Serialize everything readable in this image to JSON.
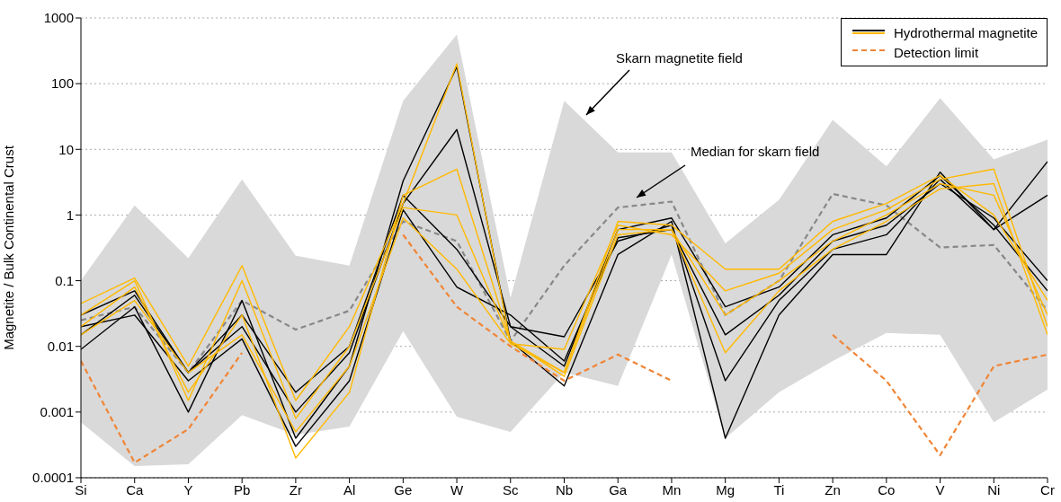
{
  "chart_data": {
    "type": "line",
    "ylabel": "Magnetite / Bulk Continental Crust",
    "categories": [
      "Si",
      "Ca",
      "Y",
      "Pb",
      "Zr",
      "Al",
      "Ge",
      "W",
      "Sc",
      "Nb",
      "Ga",
      "Mn",
      "Mg",
      "Ti",
      "Zn",
      "Co",
      "V",
      "Ni",
      "Cr"
    ],
    "log": "y",
    "ylim": [
      0.0001,
      1000
    ],
    "yticks": [
      0.0001,
      0.001,
      0.01,
      0.1,
      1,
      10,
      100,
      1000
    ],
    "grid": "y",
    "legend": "top right",
    "marker": "none",
    "annotations": [
      "Skarn magnetite field",
      "Median for skarn field"
    ],
    "series": [
      {
        "color": "#888888",
        "line_style": "dashed",
        "values": [
          0.025,
          0.04,
          0.004,
          0.05,
          0.018,
          0.035,
          0.8,
          0.4,
          0.012,
          0.17,
          1.3,
          1.6,
          0.03,
          0.1,
          2.1,
          1.4,
          0.32,
          0.35,
          0.035
        ],
        "lower": [
          0.0007,
          0.00015,
          0.00016,
          0.0009,
          0.00045,
          0.0006,
          0.017,
          0.00085,
          0.0005,
          0.004,
          0.0025,
          0.25,
          0.0004,
          0.002,
          0.006,
          0.016,
          0.015,
          0.0007,
          0.0022
        ],
        "upper": [
          0.1,
          1.4,
          0.22,
          3.5,
          0.24,
          0.17,
          55,
          560,
          0.055,
          55,
          9,
          9,
          0.37,
          1.7,
          28,
          5.5,
          60,
          7,
          14
        ]
      },
      {
        "name": "Hydrothermal magnetite",
        "color": "#000000",
        "line_style": "solid",
        "values": [
          0.009,
          0.04,
          0.001,
          0.05,
          0.0004,
          0.005,
          3.3,
          180,
          0.012,
          0.0025,
          0.25,
          0.8,
          0.0004,
          0.03,
          0.25,
          0.25,
          4.5,
          0.6,
          6.5
        ]
      },
      {
        "color": "#000000",
        "line_style": "solid",
        "values": [
          0.015,
          0.06,
          0.004,
          0.02,
          0.001,
          0.008,
          1.5,
          20,
          0.02,
          0.014,
          0.4,
          0.7,
          0.003,
          0.05,
          0.3,
          0.5,
          3.5,
          0.6,
          2
        ]
      },
      {
        "color": "#000000",
        "line_style": "solid",
        "values": [
          0.02,
          0.03,
          0.003,
          0.013,
          0.0003,
          0.003,
          1.2,
          0.08,
          0.03,
          0.006,
          0.45,
          0.6,
          0.015,
          0.06,
          0.4,
          0.7,
          3,
          0.9,
          0.1
        ]
      },
      {
        "color": "#000000",
        "line_style": "solid",
        "values": [
          0.03,
          0.07,
          0.004,
          0.03,
          0.002,
          0.01,
          2,
          0.3,
          0.02,
          0.005,
          0.6,
          0.9,
          0.04,
          0.08,
          0.5,
          0.9,
          4,
          0.7,
          0.07
        ]
      },
      {
        "color": "#ffb900",
        "line_style": "solid",
        "values": [
          0.045,
          0.11,
          0.005,
          0.17,
          0.0015,
          0.02,
          1.5,
          200,
          0.011,
          0.009,
          0.7,
          0.5,
          0.07,
          0.13,
          0.6,
          1.2,
          3.5,
          5,
          0.02
        ]
      },
      {
        "color": "#ffb900",
        "line_style": "solid",
        "values": [
          0.02,
          0.08,
          0.002,
          0.03,
          0.0002,
          0.002,
          2,
          5,
          0.012,
          0.0035,
          0.5,
          0.6,
          0.008,
          0.07,
          0.3,
          0.8,
          2.5,
          3,
          0.015
        ]
      },
      {
        "color": "#ffb900",
        "line_style": "solid",
        "values": [
          0.03,
          0.1,
          0.0015,
          0.1,
          0.0008,
          0.01,
          1.3,
          1,
          0.012,
          0.004,
          0.6,
          0.6,
          0.03,
          0.1,
          0.4,
          1,
          3,
          2,
          0.03
        ]
      },
      {
        "color": "#ffb900",
        "line_style": "solid",
        "values": [
          0.015,
          0.05,
          0.004,
          0.015,
          0.0005,
          0.005,
          0.9,
          0.15,
          0.011,
          0.004,
          0.8,
          0.7,
          0.15,
          0.15,
          0.8,
          1.5,
          4,
          1,
          0.05
        ]
      },
      {
        "name": "Detection limit",
        "color": "#f08536",
        "line_style": "dashed",
        "values": [
          0.006,
          0.00017,
          0.00055,
          0.008,
          null,
          null,
          0.5,
          0.04,
          0.01,
          0.003,
          0.0075,
          0.003,
          null,
          null,
          0.015,
          0.003,
          0.00022,
          0.005,
          0.0075
        ]
      }
    ]
  }
}
